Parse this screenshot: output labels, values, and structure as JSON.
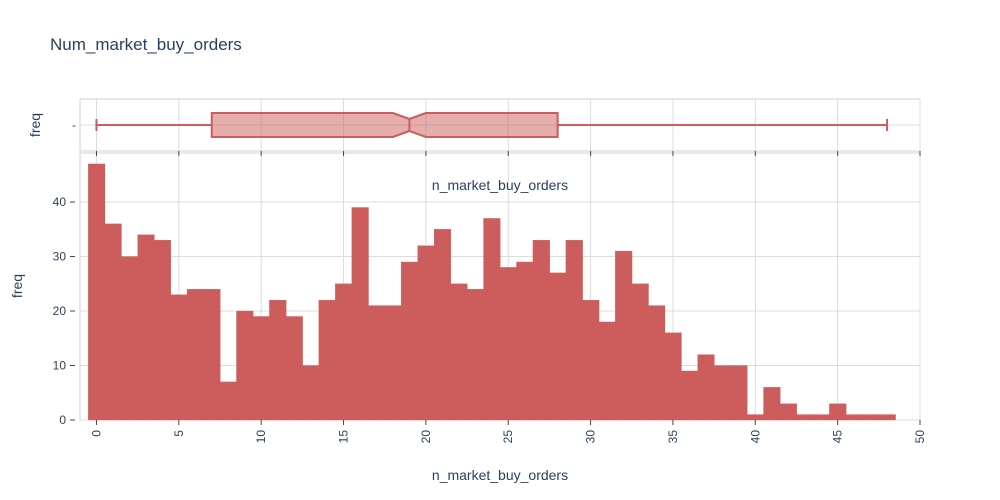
{
  "chart_data": {
    "title": "Num_market_buy_orders",
    "type": "histogram",
    "color": "#cd5c5c",
    "histogram": {
      "xlabel": "n_market_buy_orders",
      "ylabel": "freq",
      "annotation": "n_market_buy_orders",
      "bin_width": 1,
      "x_start": -0.5,
      "x_range": [
        -1,
        50
      ],
      "y_range": [
        0,
        49
      ],
      "x_ticks": [
        0,
        5,
        10,
        15,
        20,
        25,
        30,
        35,
        40,
        45,
        50
      ],
      "y_ticks": [
        0,
        10,
        20,
        30,
        40
      ],
      "values": [
        47,
        36,
        30,
        34,
        33,
        23,
        24,
        24,
        7,
        20,
        19,
        22,
        19,
        10,
        22,
        25,
        39,
        21,
        21,
        29,
        32,
        35,
        25,
        24,
        37,
        28,
        29,
        33,
        27,
        33,
        22,
        18,
        31,
        25,
        21,
        16,
        9,
        12,
        10,
        10,
        1,
        6,
        3,
        1,
        1,
        3,
        1,
        1,
        1
      ]
    },
    "box": {
      "ylabel": "freq",
      "y_tick": "-",
      "min": 0,
      "q1": 7,
      "median": 19,
      "q3": 28,
      "max": 48,
      "notch_low": 18,
      "notch_high": 20
    }
  }
}
